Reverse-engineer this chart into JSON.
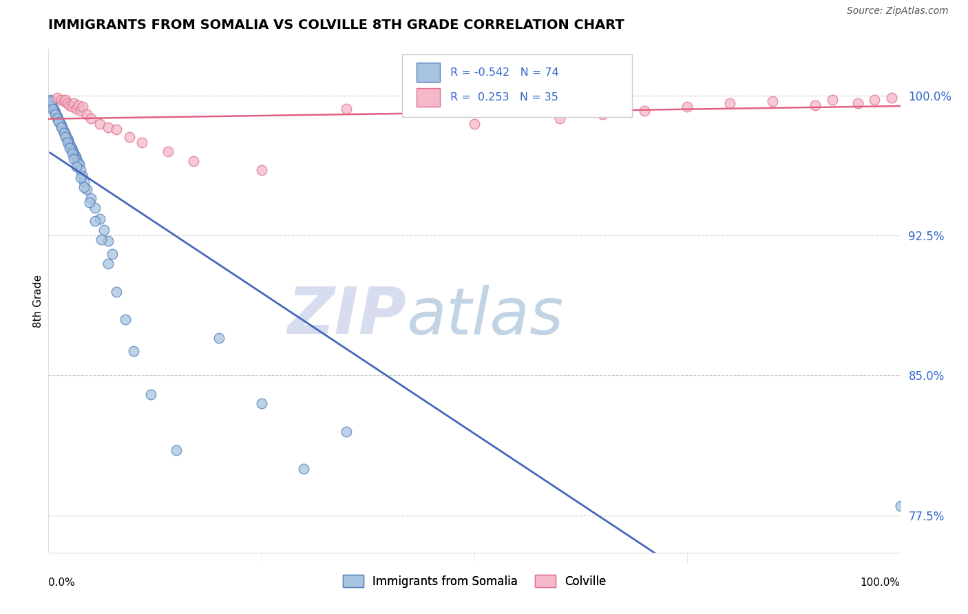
{
  "title": "IMMIGRANTS FROM SOMALIA VS COLVILLE 8TH GRADE CORRELATION CHART",
  "source_text": "Source: ZipAtlas.com",
  "xlabel_bottom_left": "0.0%",
  "xlabel_bottom_right": "100.0%",
  "ylabel_label": "8th Grade",
  "y_tick_labels": [
    "77.5%",
    "85.0%",
    "92.5%",
    "100.0%"
  ],
  "y_tick_values": [
    0.775,
    0.85,
    0.925,
    1.0
  ],
  "legend_blue_r": "-0.542",
  "legend_blue_n": "74",
  "legend_pink_r": "0.253",
  "legend_pink_n": "35",
  "blue_color": "#A8C4E0",
  "pink_color": "#F4B8C8",
  "blue_edge_color": "#5580BB",
  "pink_edge_color": "#E07090",
  "blue_line_color": "#4466BB",
  "pink_line_color": "#E06080",
  "background_color": "#FFFFFF",
  "grid_color": "#CCCCCC",
  "watermark_zip_color": "#D8DCE8",
  "watermark_atlas_color": "#C8D4E8",
  "blue_scatter_x": [
    0.002,
    0.003,
    0.004,
    0.005,
    0.006,
    0.007,
    0.008,
    0.009,
    0.01,
    0.011,
    0.012,
    0.013,
    0.014,
    0.015,
    0.016,
    0.017,
    0.018,
    0.019,
    0.02,
    0.021,
    0.022,
    0.023,
    0.024,
    0.025,
    0.026,
    0.027,
    0.028,
    0.029,
    0.03,
    0.031,
    0.032,
    0.033,
    0.034,
    0.035,
    0.036,
    0.038,
    0.04,
    0.042,
    0.045,
    0.05,
    0.055,
    0.06,
    0.065,
    0.07,
    0.075,
    0.003,
    0.005,
    0.008,
    0.01,
    0.012,
    0.015,
    0.018,
    0.02,
    0.022,
    0.025,
    0.028,
    0.03,
    0.033,
    0.038,
    0.042,
    0.048,
    0.055,
    0.062,
    0.07,
    0.08,
    0.09,
    0.1,
    0.12,
    0.15,
    0.2,
    0.25,
    0.3,
    0.35,
    1.0
  ],
  "blue_scatter_y": [
    0.998,
    0.996,
    0.995,
    0.994,
    0.993,
    0.992,
    0.991,
    0.99,
    0.989,
    0.988,
    0.987,
    0.986,
    0.985,
    0.984,
    0.983,
    0.982,
    0.981,
    0.98,
    0.979,
    0.978,
    0.977,
    0.976,
    0.975,
    0.974,
    0.973,
    0.972,
    0.971,
    0.97,
    0.969,
    0.968,
    0.967,
    0.966,
    0.965,
    0.964,
    0.963,
    0.96,
    0.957,
    0.954,
    0.95,
    0.945,
    0.94,
    0.934,
    0.928,
    0.922,
    0.915,
    0.997,
    0.993,
    0.99,
    0.988,
    0.986,
    0.983,
    0.98,
    0.978,
    0.975,
    0.972,
    0.969,
    0.966,
    0.962,
    0.956,
    0.951,
    0.943,
    0.933,
    0.923,
    0.91,
    0.895,
    0.88,
    0.863,
    0.84,
    0.81,
    0.87,
    0.835,
    0.8,
    0.82,
    0.78
  ],
  "pink_scatter_x": [
    0.01,
    0.015,
    0.018,
    0.02,
    0.022,
    0.025,
    0.028,
    0.03,
    0.033,
    0.035,
    0.038,
    0.04,
    0.045,
    0.05,
    0.06,
    0.07,
    0.08,
    0.095,
    0.11,
    0.14,
    0.17,
    0.25,
    0.35,
    0.5,
    0.6,
    0.65,
    0.7,
    0.75,
    0.8,
    0.85,
    0.9,
    0.92,
    0.95,
    0.97,
    0.99
  ],
  "pink_scatter_y": [
    0.999,
    0.998,
    0.997,
    0.998,
    0.996,
    0.995,
    0.994,
    0.996,
    0.993,
    0.995,
    0.992,
    0.994,
    0.99,
    0.988,
    0.985,
    0.983,
    0.982,
    0.978,
    0.975,
    0.97,
    0.965,
    0.96,
    0.993,
    0.985,
    0.988,
    0.99,
    0.992,
    0.994,
    0.996,
    0.997,
    0.995,
    0.998,
    0.996,
    0.998,
    0.999
  ]
}
